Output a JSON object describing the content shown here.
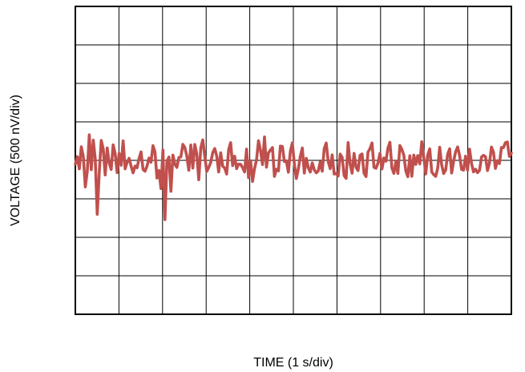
{
  "chart_data": {
    "type": "line",
    "title": "",
    "xlabel": "TIME (1 s/div)",
    "ylabel": "VOLTAGE (500 nV/div)",
    "x_divisions": 10,
    "y_divisions": 8,
    "grid": true,
    "legend": "none",
    "line_color": "#c0504d",
    "xlim": [
      0,
      10
    ],
    "ylim": [
      -2000,
      2000
    ],
    "series": [
      {
        "values": [
          -49,
          47,
          -111,
          176,
          50,
          -345,
          -145,
          332,
          -122,
          263,
          19,
          -701,
          -161,
          258,
          150,
          -190,
          161,
          -35,
          -119,
          201,
          88,
          -160,
          89,
          -65,
          252,
          -110,
          -25,
          27,
          -74,
          -163,
          -74,
          -97,
          23,
          110,
          -119,
          -141,
          -75,
          30,
          -24,
          191,
          110,
          -230,
          -132,
          -366,
          133,
          -770,
          -11,
          43,
          -402,
          69,
          -51,
          -92,
          37,
          44,
          208,
          167,
          55,
          -129,
          199,
          -100,
          206,
          83,
          -252,
          161,
          266,
          53,
          -144,
          -92,
          -27,
          99,
          154,
          58,
          -151,
          99,
          -76,
          -100,
          -178,
          139,
          231,
          -69,
          54,
          -108,
          -48,
          -51,
          -94,
          -151,
          145,
          -225,
          -4,
          -274,
          -106,
          6,
          254,
          129,
          -55,
          304,
          -89,
          98,
          133,
          166,
          -208,
          -115,
          -137,
          185,
          180,
          -16,
          -6,
          -154,
          119,
          227,
          -48,
          -236,
          -113,
          53,
          160,
          -165,
          26,
          -95,
          -152,
          -34,
          -122,
          -162,
          -138,
          -22,
          -141,
          151,
          226,
          -15,
          -108,
          71,
          -178,
          -170,
          -204,
          81,
          40,
          -197,
          -234,
          231,
          -46,
          -167,
          91,
          -92,
          -133,
          66,
          83,
          -167,
          -211,
          107,
          154,
          226,
          -91,
          -103,
          -36,
          90,
          -111,
          31,
          -11,
          159,
          235,
          -96,
          -169,
          -17,
          -170,
          192,
          143,
          64,
          -139,
          -213,
          59,
          -207,
          69,
          -53,
          63,
          -47,
          242,
          43,
          -177,
          72,
          150,
          -150,
          -185,
          -208,
          -104,
          170,
          -59,
          -171,
          -126,
          79,
          150,
          -165,
          -12,
          112,
          174,
          61,
          -118,
          -126,
          55,
          -128,
          145,
          -42,
          -150,
          -115,
          -160,
          -130,
          43,
          65,
          48,
          -133,
          -36,
          173,
          109,
          -105,
          -4,
          -42,
          166,
          165,
          230,
          238,
          51,
          93
        ]
      }
    ]
  }
}
